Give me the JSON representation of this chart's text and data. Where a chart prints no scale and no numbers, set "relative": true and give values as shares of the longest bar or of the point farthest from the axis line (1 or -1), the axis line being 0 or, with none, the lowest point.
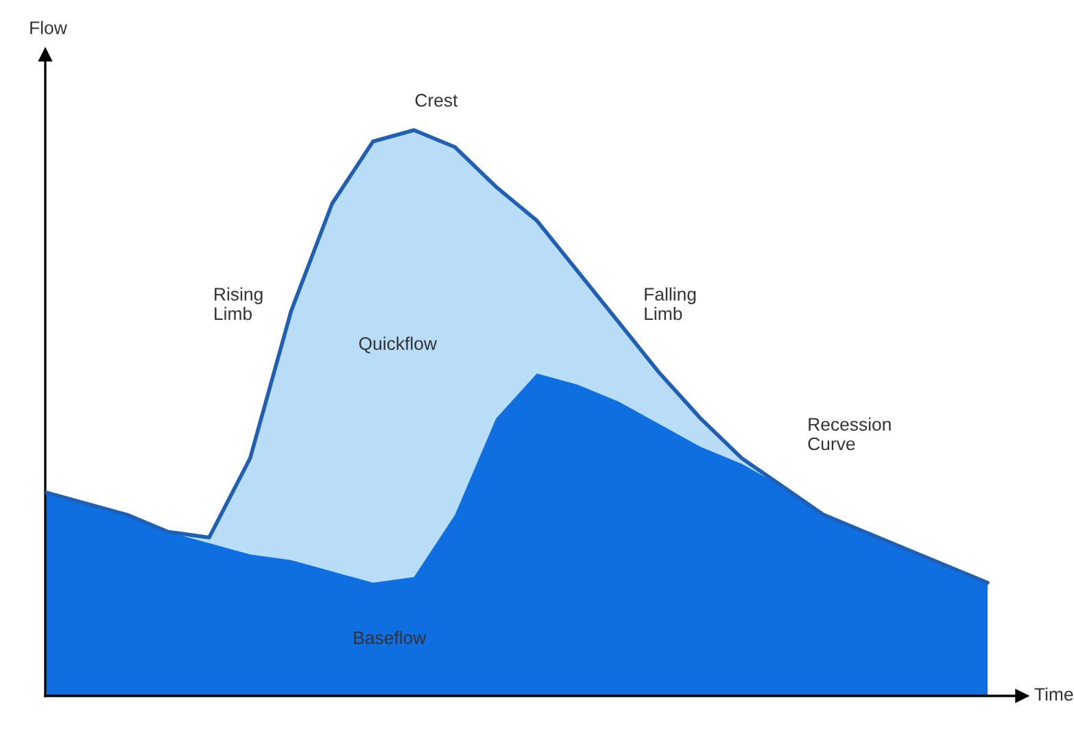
{
  "chart_data": {
    "type": "area",
    "relative": true,
    "legend": false,
    "categories": [
      null,
      null,
      null,
      null,
      null,
      null,
      null,
      null,
      null,
      null,
      null,
      null,
      null,
      null,
      null,
      null,
      null,
      null,
      null,
      null,
      null,
      null,
      null,
      null
    ],
    "series": [
      {
        "color": "#b9ddf7",
        "values": [
          0.36,
          0.34,
          0.32,
          0.29,
          0.28,
          0.42,
          0.68,
          0.87,
          0.98,
          1.0,
          0.97,
          0.9,
          0.84,
          0.75,
          0.66,
          0.57,
          0.49,
          0.42,
          0.37,
          0.32,
          0.29,
          0.26,
          0.23,
          0.2
        ]
      },
      {
        "color": "#0f6fe0",
        "values": [
          0.36,
          0.34,
          0.32,
          0.29,
          0.27,
          0.25,
          0.24,
          0.22,
          0.2,
          0.21,
          0.32,
          0.49,
          0.57,
          0.55,
          0.52,
          0.48,
          0.44,
          0.41,
          0.37,
          0.32,
          0.29,
          0.26,
          0.23,
          0.2
        ]
      }
    ],
    "annotations": [
      "Flow",
      "Time",
      "Crest",
      "Rising\nLimb",
      "Quickflow",
      "Falling\nLimb",
      "Recession\nCurve",
      "Baseflow"
    ]
  }
}
